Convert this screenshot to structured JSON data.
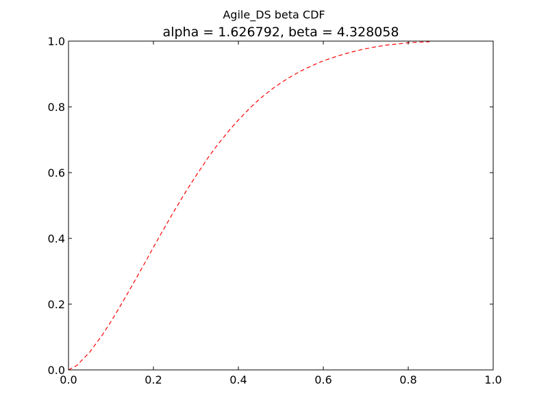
{
  "chart_data": {
    "type": "line",
    "suptitle": "Agile_DS beta CDF",
    "title": "alpha = 1.626792, beta = 4.328058",
    "xlabel": "",
    "ylabel": "",
    "xlim": [
      0.0,
      1.0
    ],
    "ylim": [
      0.0,
      1.0
    ],
    "x_ticks": [
      "0.0",
      "0.2",
      "0.4",
      "0.6",
      "0.8",
      "1.0"
    ],
    "y_ticks": [
      "0.0",
      "0.2",
      "0.4",
      "0.6",
      "0.8",
      "1.0"
    ],
    "grid": false,
    "legend": "none",
    "series": [
      {
        "color": "#ff0000",
        "line_style": "dashed",
        "x": [
          0.0,
          0.02,
          0.05,
          0.08,
          0.1,
          0.12,
          0.15,
          0.18,
          0.2,
          0.22,
          0.25,
          0.28,
          0.3,
          0.33,
          0.35,
          0.38,
          0.4,
          0.43,
          0.45,
          0.48,
          0.5,
          0.53,
          0.55,
          0.58,
          0.6,
          0.63,
          0.65,
          0.68,
          0.7,
          0.73,
          0.75,
          0.78,
          0.8,
          0.83,
          0.85
        ],
        "values": [
          0.0,
          0.014,
          0.054,
          0.107,
          0.147,
          0.19,
          0.257,
          0.326,
          0.373,
          0.419,
          0.486,
          0.55,
          0.59,
          0.648,
          0.683,
          0.731,
          0.76,
          0.8,
          0.824,
          0.855,
          0.873,
          0.897,
          0.911,
          0.929,
          0.94,
          0.953,
          0.961,
          0.971,
          0.977,
          0.984,
          0.988,
          0.992,
          0.995,
          0.997,
          0.998
        ]
      }
    ]
  }
}
